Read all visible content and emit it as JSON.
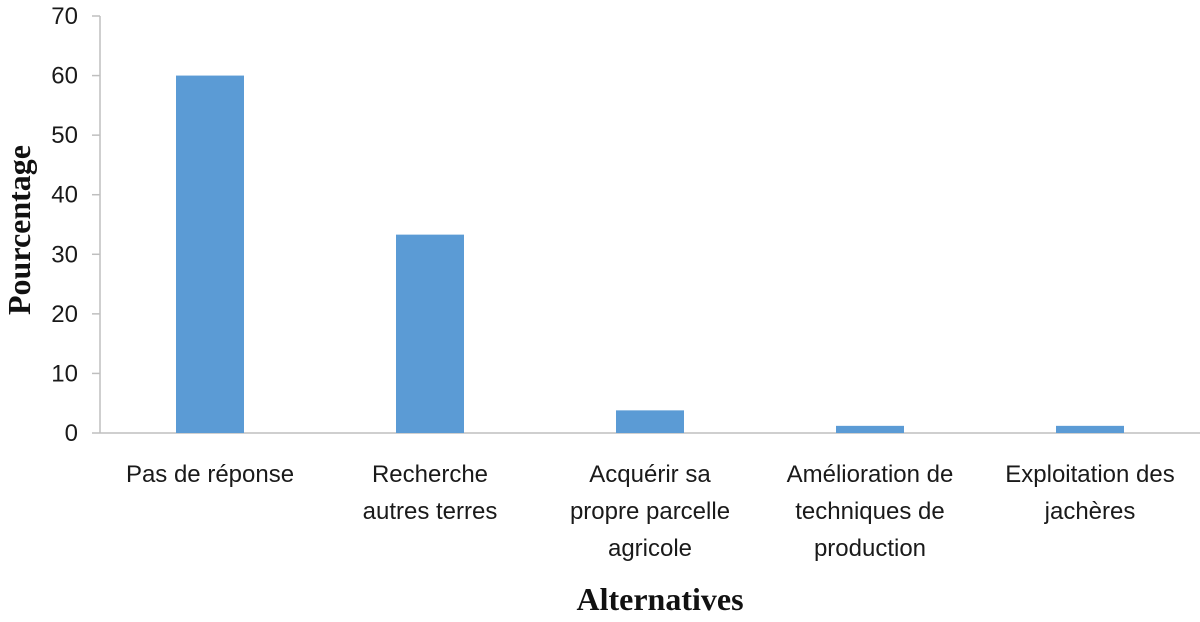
{
  "chart_data": {
    "type": "bar",
    "title": "",
    "xlabel": "Alternatives",
    "ylabel": "Pourcentage",
    "ylim": [
      0,
      70
    ],
    "yticks": [
      0,
      10,
      20,
      30,
      40,
      50,
      60,
      70
    ],
    "grid": false,
    "legend": "none",
    "categories": [
      [
        "Pas de réponse"
      ],
      [
        "Recherche",
        "autres terres"
      ],
      [
        "Acquérir sa",
        "propre parcelle",
        "agricole"
      ],
      [
        "Amélioration de",
        "techniques de",
        "production"
      ],
      [
        "Exploitation des",
        "jachères"
      ]
    ],
    "values": [
      60,
      33.3,
      3.8,
      1.2,
      1.2
    ],
    "bar_color": "#5b9bd5",
    "axis_color": "#bfbfbf"
  }
}
